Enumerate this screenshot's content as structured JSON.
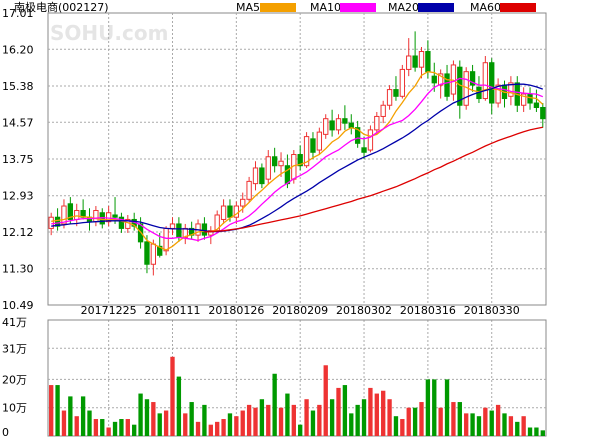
{
  "header": {
    "title": "南极电商(002127)",
    "watermark": "SOHU.com",
    "legend": [
      {
        "label": "MA5",
        "color": "#f4a000"
      },
      {
        "label": "MA10",
        "color": "#ff00ff"
      },
      {
        "label": "MA20",
        "color": "#0000aa"
      },
      {
        "label": "MA60",
        "color": "#dd0000"
      }
    ]
  },
  "colors": {
    "up": "#ee3333",
    "down": "#009900",
    "grid": "#aaaaaa",
    "frame": "#888888"
  },
  "chart_data": [
    {
      "type": "candlestick",
      "title": "南极电商(002127)",
      "yticks": [
        "17.01",
        "16.20",
        "15.38",
        "14.57",
        "13.75",
        "12.93",
        "12.12",
        "11.30",
        "10.49"
      ],
      "ylim": [
        10.49,
        17.01
      ],
      "date_labels": [
        {
          "index": 9,
          "label": "20171225"
        },
        {
          "index": 19,
          "label": "20180111"
        },
        {
          "index": 29,
          "label": "20180126"
        },
        {
          "index": 39,
          "label": "20180209"
        },
        {
          "index": 49,
          "label": "20180302"
        },
        {
          "index": 59,
          "label": "20180316"
        },
        {
          "index": 69,
          "label": "20180330"
        }
      ],
      "ohlc": [
        [
          12.2,
          12.55,
          12.05,
          12.45
        ],
        [
          12.45,
          12.65,
          12.15,
          12.25
        ],
        [
          12.3,
          12.85,
          12.2,
          12.7
        ],
        [
          12.75,
          12.9,
          12.3,
          12.4
        ],
        [
          12.4,
          12.75,
          12.25,
          12.6
        ],
        [
          12.6,
          12.85,
          12.4,
          12.45
        ],
        [
          12.45,
          12.65,
          12.15,
          12.35
        ],
        [
          12.35,
          12.7,
          12.25,
          12.6
        ],
        [
          12.55,
          12.65,
          12.2,
          12.3
        ],
        [
          12.35,
          12.7,
          12.25,
          12.55
        ],
        [
          12.5,
          12.9,
          12.3,
          12.45
        ],
        [
          12.45,
          12.55,
          12.1,
          12.2
        ],
        [
          12.2,
          12.5,
          12.1,
          12.4
        ],
        [
          12.4,
          12.55,
          12.15,
          12.25
        ],
        [
          12.3,
          12.45,
          11.75,
          11.9
        ],
        [
          11.9,
          12.05,
          11.2,
          11.4
        ],
        [
          11.4,
          11.95,
          11.15,
          11.85
        ],
        [
          11.8,
          12.1,
          11.55,
          11.6
        ],
        [
          11.7,
          12.25,
          11.6,
          12.2
        ],
        [
          12.2,
          12.45,
          12.05,
          12.3
        ],
        [
          12.3,
          12.45,
          11.9,
          12.0
        ],
        [
          12.0,
          12.3,
          11.85,
          12.2
        ],
        [
          12.2,
          12.35,
          11.95,
          12.05
        ],
        [
          12.05,
          12.4,
          11.9,
          12.3
        ],
        [
          12.3,
          12.45,
          11.95,
          12.05
        ],
        [
          12.05,
          12.25,
          11.85,
          12.15
        ],
        [
          12.15,
          12.6,
          12.1,
          12.5
        ],
        [
          12.4,
          12.85,
          12.3,
          12.7
        ],
        [
          12.7,
          12.85,
          12.35,
          12.45
        ],
        [
          12.45,
          12.8,
          12.3,
          12.7
        ],
        [
          12.7,
          13.0,
          12.55,
          12.85
        ],
        [
          12.85,
          13.35,
          12.8,
          13.25
        ],
        [
          13.2,
          13.7,
          13.05,
          13.55
        ],
        [
          13.55,
          13.65,
          13.1,
          13.2
        ],
        [
          13.3,
          13.95,
          13.2,
          13.8
        ],
        [
          13.8,
          14.0,
          13.45,
          13.6
        ],
        [
          13.6,
          13.9,
          13.35,
          13.7
        ],
        [
          13.6,
          13.85,
          13.1,
          13.2
        ],
        [
          13.3,
          13.95,
          13.2,
          13.85
        ],
        [
          13.85,
          14.05,
          13.5,
          13.6
        ],
        [
          13.6,
          14.35,
          13.55,
          14.25
        ],
        [
          14.2,
          14.35,
          13.75,
          13.9
        ],
        [
          13.95,
          14.45,
          13.85,
          14.35
        ],
        [
          14.3,
          14.75,
          14.2,
          14.65
        ],
        [
          14.6,
          14.85,
          14.25,
          14.4
        ],
        [
          14.4,
          14.75,
          14.3,
          14.65
        ],
        [
          14.65,
          14.95,
          14.4,
          14.55
        ],
        [
          14.55,
          14.75,
          14.3,
          14.45
        ],
        [
          14.45,
          14.6,
          14.0,
          14.1
        ],
        [
          14.0,
          14.25,
          13.75,
          13.9
        ],
        [
          13.95,
          14.5,
          13.9,
          14.4
        ],
        [
          14.4,
          14.8,
          14.3,
          14.7
        ],
        [
          14.7,
          15.05,
          14.55,
          14.95
        ],
        [
          14.95,
          15.4,
          14.85,
          15.3
        ],
        [
          15.3,
          15.6,
          15.05,
          15.15
        ],
        [
          15.15,
          15.85,
          15.1,
          15.75
        ],
        [
          15.75,
          16.45,
          15.6,
          16.05
        ],
        [
          16.05,
          16.6,
          15.7,
          15.8
        ],
        [
          15.8,
          16.25,
          15.55,
          16.15
        ],
        [
          16.15,
          16.4,
          15.55,
          15.7
        ],
        [
          15.6,
          15.9,
          15.25,
          15.45
        ],
        [
          15.4,
          15.75,
          15.1,
          15.65
        ],
        [
          15.65,
          15.85,
          15.05,
          15.15
        ],
        [
          15.2,
          15.95,
          15.05,
          15.85
        ],
        [
          15.8,
          15.95,
          14.65,
          14.95
        ],
        [
          14.95,
          15.8,
          14.85,
          15.7
        ],
        [
          15.7,
          15.85,
          15.25,
          15.4
        ],
        [
          15.35,
          15.6,
          15.0,
          15.1
        ],
        [
          15.1,
          16.05,
          15.05,
          15.9
        ],
        [
          15.9,
          16.0,
          14.75,
          15.0
        ],
        [
          15.0,
          15.55,
          14.9,
          15.4
        ],
        [
          15.4,
          15.5,
          14.9,
          15.1
        ],
        [
          15.15,
          15.6,
          14.95,
          15.45
        ],
        [
          15.45,
          15.6,
          14.8,
          14.95
        ],
        [
          14.95,
          15.35,
          14.8,
          15.2
        ],
        [
          15.2,
          15.35,
          14.85,
          15.0
        ],
        [
          15.0,
          15.3,
          14.8,
          14.9
        ],
        [
          14.9,
          15.0,
          14.45,
          14.65
        ]
      ],
      "ma": {
        "MA5": [
          12.36,
          12.38,
          12.4,
          12.45,
          12.48,
          12.46,
          12.45,
          12.42,
          12.4,
          12.39,
          12.4,
          12.36,
          12.33,
          12.27,
          12.12,
          11.93,
          11.85,
          11.78,
          11.72,
          11.8,
          11.92,
          12.02,
          12.06,
          12.12,
          12.14,
          12.12,
          12.18,
          12.32,
          12.43,
          12.52,
          12.64,
          12.78,
          12.93,
          13.05,
          13.19,
          13.31,
          13.42,
          13.5,
          13.6,
          13.63,
          13.68,
          13.78,
          13.85,
          13.98,
          14.13,
          14.22,
          14.37,
          14.45,
          14.41,
          14.3,
          14.26,
          14.3,
          14.42,
          14.58,
          14.82,
          15.01,
          15.22,
          15.38,
          15.62,
          15.7,
          15.68,
          15.6,
          15.52,
          15.51,
          15.4,
          15.35,
          15.28,
          15.25,
          15.3,
          15.32,
          15.3,
          15.24,
          15.23,
          15.19,
          15.15,
          15.12,
          15.1,
          14.97
        ],
        "MA10": [
          12.3,
          12.32,
          12.34,
          12.37,
          12.4,
          12.42,
          12.42,
          12.43,
          12.44,
          12.43,
          12.42,
          12.4,
          12.37,
          12.34,
          12.28,
          12.18,
          12.1,
          12.02,
          11.98,
          11.98,
          12.0,
          11.98,
          11.96,
          11.93,
          11.98,
          12.02,
          12.1,
          12.19,
          12.29,
          12.35,
          12.39,
          12.48,
          12.6,
          12.74,
          12.87,
          13.01,
          13.12,
          13.21,
          13.31,
          13.38,
          13.46,
          13.57,
          13.68,
          13.8,
          13.88,
          13.95,
          14.06,
          14.16,
          14.22,
          14.2,
          14.24,
          14.34,
          14.42,
          14.51,
          14.56,
          14.61,
          14.72,
          14.86,
          15.03,
          15.21,
          15.35,
          15.42,
          15.45,
          15.48,
          15.55,
          15.53,
          15.46,
          15.4,
          15.4,
          15.35,
          15.32,
          15.3,
          15.26,
          15.24,
          15.22,
          15.21,
          15.2,
          15.14
        ],
        "MA20": [
          12.25,
          12.27,
          12.28,
          12.3,
          12.31,
          12.33,
          12.34,
          12.35,
          12.36,
          12.37,
          12.37,
          12.37,
          12.37,
          12.36,
          12.34,
          12.3,
          12.26,
          12.22,
          12.2,
          12.19,
          12.19,
          12.19,
          12.18,
          12.17,
          12.15,
          12.13,
          12.13,
          12.14,
          12.16,
          12.18,
          12.22,
          12.27,
          12.34,
          12.42,
          12.5,
          12.59,
          12.68,
          12.78,
          12.87,
          12.95,
          13.03,
          13.12,
          13.22,
          13.31,
          13.4,
          13.49,
          13.57,
          13.65,
          13.73,
          13.79,
          13.85,
          13.91,
          13.98,
          14.06,
          14.14,
          14.22,
          14.31,
          14.41,
          14.52,
          14.61,
          14.72,
          14.82,
          14.91,
          15.0,
          15.06,
          15.13,
          15.19,
          15.24,
          15.28,
          15.32,
          15.37,
          15.4,
          15.41,
          15.42,
          15.42,
          15.4,
          15.36,
          15.31
        ],
        "MA60": [
          null,
          null,
          null,
          null,
          null,
          null,
          null,
          null,
          null,
          null,
          null,
          null,
          null,
          null,
          null,
          null,
          null,
          null,
          null,
          null,
          null,
          null,
          null,
          null,
          12.12,
          12.13,
          12.14,
          12.15,
          12.17,
          12.19,
          12.21,
          12.24,
          12.27,
          12.3,
          12.33,
          12.36,
          12.39,
          12.42,
          12.45,
          12.48,
          12.52,
          12.56,
          12.6,
          12.64,
          12.68,
          12.72,
          12.76,
          12.8,
          12.85,
          12.89,
          12.93,
          12.98,
          13.03,
          13.08,
          13.13,
          13.19,
          13.25,
          13.31,
          13.38,
          13.44,
          13.51,
          13.57,
          13.64,
          13.7,
          13.77,
          13.84,
          13.9,
          13.97,
          14.04,
          14.1,
          14.16,
          14.21,
          14.26,
          14.31,
          14.36,
          14.4,
          14.43,
          14.46
        ]
      }
    },
    {
      "type": "bar",
      "title": "volume",
      "yticks": [
        "41万",
        "31万",
        "20万",
        "10万",
        "0"
      ],
      "ylim": [
        0,
        41
      ],
      "unit": "万",
      "values": [
        18,
        18,
        9,
        14,
        7,
        14,
        9,
        6,
        6,
        3,
        5,
        6,
        6,
        4,
        15,
        13,
        12,
        8,
        9,
        28,
        21,
        8,
        12,
        5,
        11,
        4,
        5,
        6,
        8,
        7,
        9,
        11,
        10,
        13,
        11,
        22,
        10,
        15,
        11,
        4,
        13,
        9,
        11,
        25,
        13,
        17,
        18,
        8,
        11,
        13,
        17,
        15,
        16,
        13,
        7,
        6,
        10,
        10,
        12,
        20,
        20,
        10,
        20,
        12,
        12,
        8,
        8,
        7,
        10,
        9,
        11,
        8,
        7,
        5,
        7,
        3,
        3,
        2
      ]
    }
  ]
}
